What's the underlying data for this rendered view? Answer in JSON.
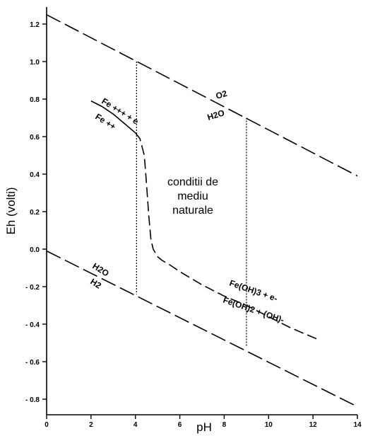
{
  "chart_data": {
    "type": "line",
    "xlabel": "pH",
    "ylabel": "Eh (volti)",
    "xlim": [
      0,
      14
    ],
    "ylim": [
      -0.85,
      1.33
    ],
    "xticks": [
      0,
      2,
      4,
      6,
      8,
      10,
      12,
      14
    ],
    "yticks": [
      -0.8,
      -0.6,
      -0.4,
      -0.2,
      0.0,
      0.2,
      0.4,
      0.6,
      0.8,
      1.0,
      1.2
    ],
    "ytick_labels": [
      "- 0.8",
      "- 0.6",
      "- 0.4",
      "- 0.2",
      "0.0",
      "0.2",
      "0.4",
      "0.6",
      "0.8",
      "1.0",
      "1.2"
    ],
    "region_label": [
      "conditii de",
      "mediu",
      "naturale"
    ],
    "annotations": {
      "o2_h2o_top": "O2",
      "o2_h2o_bottom": "H2O",
      "h2o_h2_top": "H2O",
      "h2o_h2_bottom": "H2",
      "fe_top": "Fe +++ + e",
      "fe_bottom": "Fe ++",
      "feoh_top": "Fe(OH)3 + e-",
      "feoh_bottom": "Fe(OH)2 + (OH)-"
    },
    "series": [
      {
        "style": "long-dash",
        "x": [
          0,
          14
        ],
        "y": [
          1.25,
          0.39
        ]
      },
      {
        "style": "long-dash",
        "x": [
          0,
          14
        ],
        "y": [
          -0.01,
          -0.84
        ]
      },
      {
        "style": "solid",
        "x": [
          2,
          2.5,
          3,
          3.5,
          4
        ],
        "y": [
          0.79,
          0.76,
          0.72,
          0.67,
          0.62
        ]
      },
      {
        "style": "dash",
        "x": [
          4,
          4.2,
          4.4,
          4.5,
          4.6,
          4.7,
          4.8,
          5.0,
          5.2,
          5.5,
          6.0,
          7.0,
          8.0,
          9.0,
          10.0,
          11.0,
          12.2
        ],
        "y": [
          0.62,
          0.59,
          0.5,
          0.35,
          0.18,
          0.05,
          0.0,
          -0.04,
          -0.06,
          -0.08,
          -0.12,
          -0.19,
          -0.25,
          -0.3,
          -0.36,
          -0.42,
          -0.48
        ]
      },
      {
        "style": "dotted",
        "x": [
          4.05,
          4.05
        ],
        "y": [
          1.0,
          -0.24
        ]
      },
      {
        "style": "dotted",
        "x": [
          9.0,
          9.0
        ],
        "y": [
          0.7,
          -0.52
        ]
      }
    ]
  }
}
